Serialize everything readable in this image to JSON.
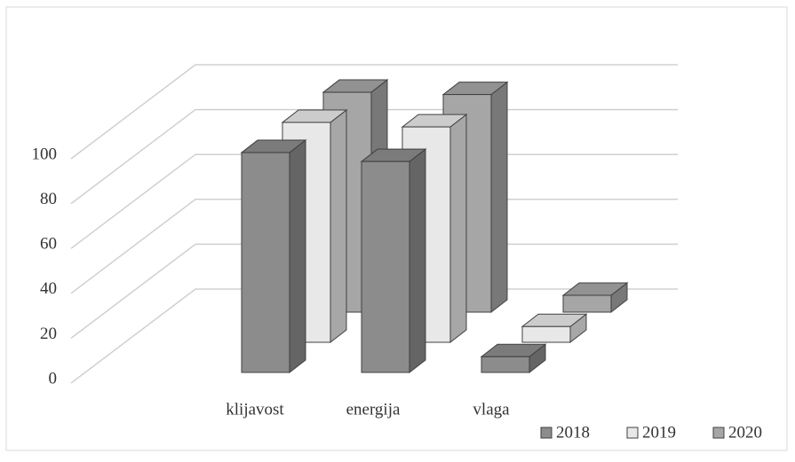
{
  "chart_data": {
    "type": "bar3d",
    "categories": [
      "klijavost",
      "energija",
      "vlaga"
    ],
    "series": [
      {
        "name": "2018",
        "color": "#8c8c8c",
        "values": [
          98,
          94,
          7
        ]
      },
      {
        "name": "2019",
        "color": "#e8e8e8",
        "values": [
          98,
          96,
          7
        ]
      },
      {
        "name": "2020",
        "color": "#a6a6a6",
        "values": [
          98,
          97,
          7.5
        ]
      }
    ],
    "ylim": [
      0,
      100
    ],
    "yticks": [
      0,
      20,
      40,
      60,
      80,
      100
    ],
    "grid": true,
    "legend": "bottom-right"
  }
}
